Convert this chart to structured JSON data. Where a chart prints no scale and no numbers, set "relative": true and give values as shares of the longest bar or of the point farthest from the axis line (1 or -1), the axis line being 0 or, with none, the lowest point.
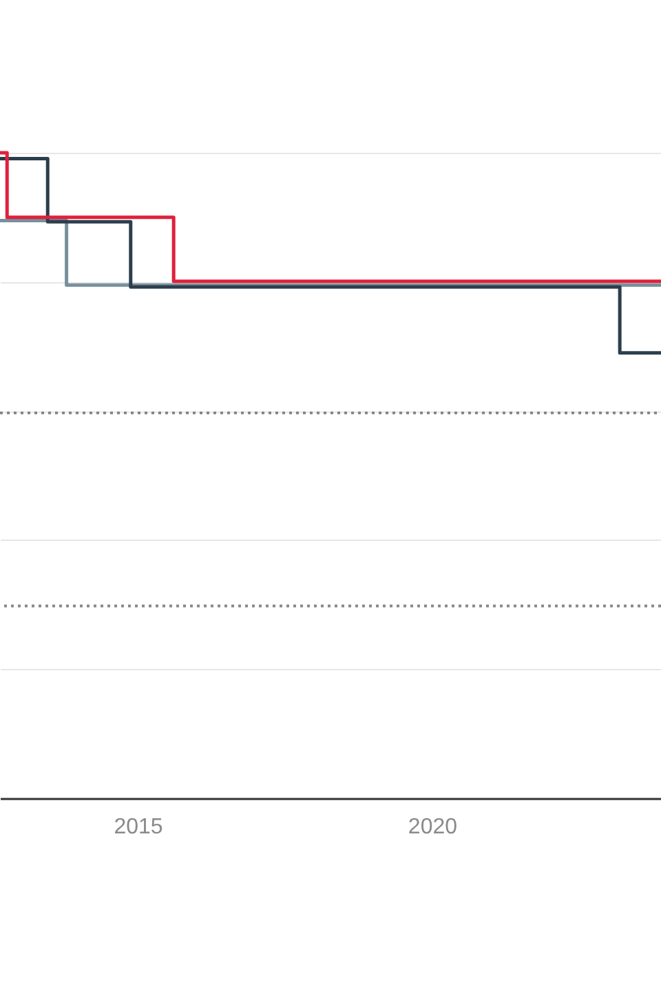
{
  "chart_data": {
    "type": "step",
    "relative": true,
    "xlim": [
      2012.66,
      2023.89
    ],
    "xticks": [
      2015,
      2020
    ],
    "grid": "y",
    "tick_labels": "x",
    "line_style": "solid",
    "series": [
      {
        "color": "#78909c",
        "x": [
          2012.66,
          2013.79,
          2023.89
        ],
        "values": [
          0.895,
          0.795,
          0.795
        ]
      },
      {
        "color": "#2c3e4c",
        "x": [
          2012.66,
          2013.47,
          2014.88,
          2023.19,
          2023.89
        ],
        "values": [
          0.991,
          0.893,
          0.792,
          0.69,
          0.69
        ]
      },
      {
        "color": "#e0203c",
        "x": [
          2012.66,
          2012.78,
          2015.61,
          2023.89
        ],
        "values": [
          1.0,
          0.9,
          0.801,
          0.801
        ]
      }
    ],
    "ref_lines": [
      {
        "axis": "y",
        "value": 0.597,
        "color": "#888888",
        "line_style": "dotted"
      },
      {
        "axis": "y",
        "value": 0.298,
        "color": "#888888",
        "line_style": "dotted"
      }
    ]
  }
}
